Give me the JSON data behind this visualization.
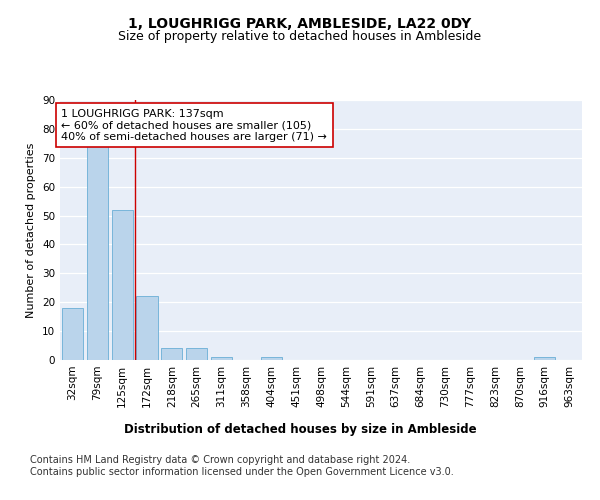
{
  "title": "1, LOUGHRIGG PARK, AMBLESIDE, LA22 0DY",
  "subtitle": "Size of property relative to detached houses in Ambleside",
  "xlabel": "Distribution of detached houses by size in Ambleside",
  "ylabel": "Number of detached properties",
  "categories": [
    "32sqm",
    "79sqm",
    "125sqm",
    "172sqm",
    "218sqm",
    "265sqm",
    "311sqm",
    "358sqm",
    "404sqm",
    "451sqm",
    "498sqm",
    "544sqm",
    "591sqm",
    "637sqm",
    "684sqm",
    "730sqm",
    "777sqm",
    "823sqm",
    "870sqm",
    "916sqm",
    "963sqm"
  ],
  "values": [
    18,
    74,
    52,
    22,
    4,
    4,
    1,
    0,
    1,
    0,
    0,
    0,
    0,
    0,
    0,
    0,
    0,
    0,
    0,
    1,
    0
  ],
  "bar_color": "#bad4eb",
  "bar_edge_color": "#6aaed6",
  "vline_x": 2.5,
  "vline_color": "#cc0000",
  "annotation_text": "1 LOUGHRIGG PARK: 137sqm\n← 60% of detached houses are smaller (105)\n40% of semi-detached houses are larger (71) →",
  "annotation_box_color": "#ffffff",
  "annotation_box_edge_color": "#cc0000",
  "ylim": [
    0,
    90
  ],
  "yticks": [
    0,
    10,
    20,
    30,
    40,
    50,
    60,
    70,
    80,
    90
  ],
  "bg_color": "#e8eef8",
  "footer_text": "Contains HM Land Registry data © Crown copyright and database right 2024.\nContains public sector information licensed under the Open Government Licence v3.0.",
  "title_fontsize": 10,
  "subtitle_fontsize": 9,
  "xlabel_fontsize": 8.5,
  "ylabel_fontsize": 8,
  "tick_fontsize": 7.5,
  "annotation_fontsize": 8,
  "footer_fontsize": 7
}
